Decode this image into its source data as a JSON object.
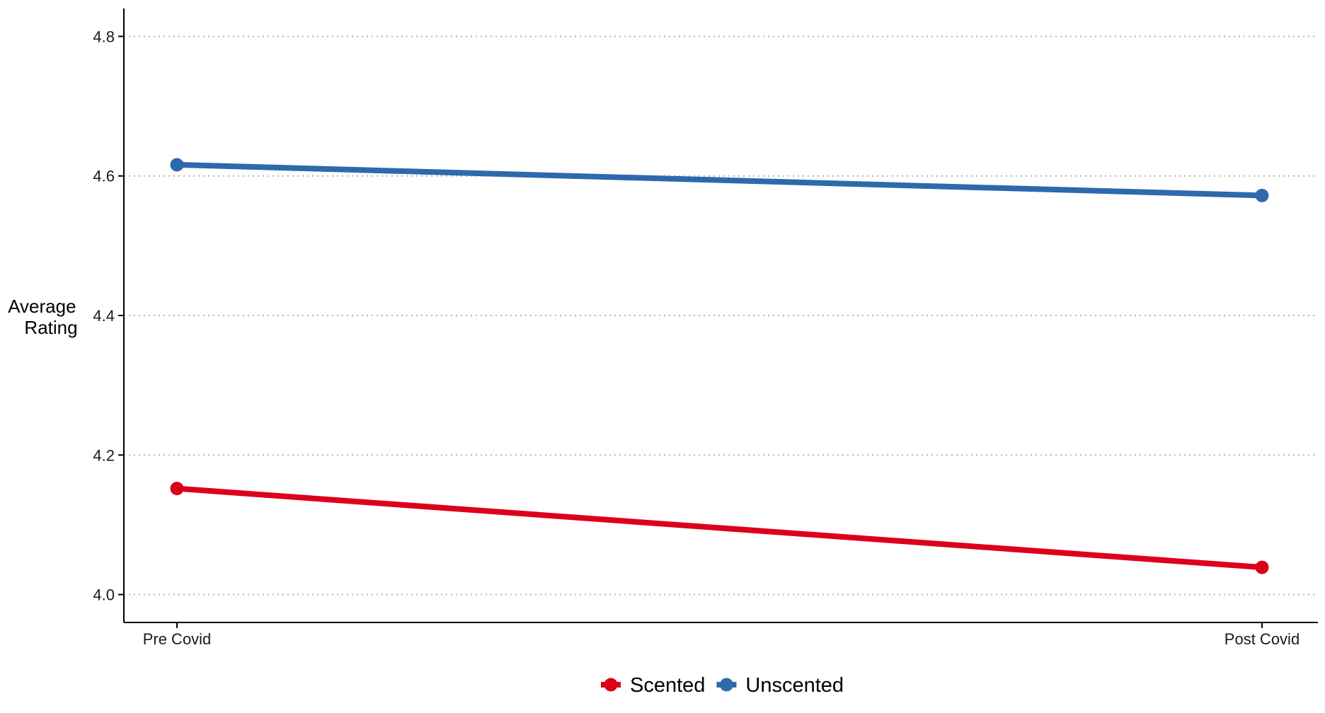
{
  "chart_data": {
    "type": "line",
    "categories": [
      "Pre Covid",
      "Post Covid"
    ],
    "series": [
      {
        "name": "Scented",
        "values": [
          4.152,
          4.039
        ],
        "color": "#DC0019"
      },
      {
        "name": "Unscented",
        "values": [
          4.616,
          4.572
        ],
        "color": "#2E69AC"
      }
    ],
    "title": "",
    "xlabel": "",
    "ylabel_lines": [
      "Average",
      "Rating"
    ],
    "ylim": [
      3.96,
      4.84
    ],
    "yticks": [
      4.0,
      4.2,
      4.4,
      4.6,
      4.8
    ],
    "ytick_labels": [
      "4.0",
      "4.2",
      "4.4",
      "4.6",
      "4.8"
    ],
    "grid": "horizontal-dotted",
    "legend_position": "bottom",
    "axis_color": "#000000",
    "grid_color": "#b3b3b3"
  }
}
